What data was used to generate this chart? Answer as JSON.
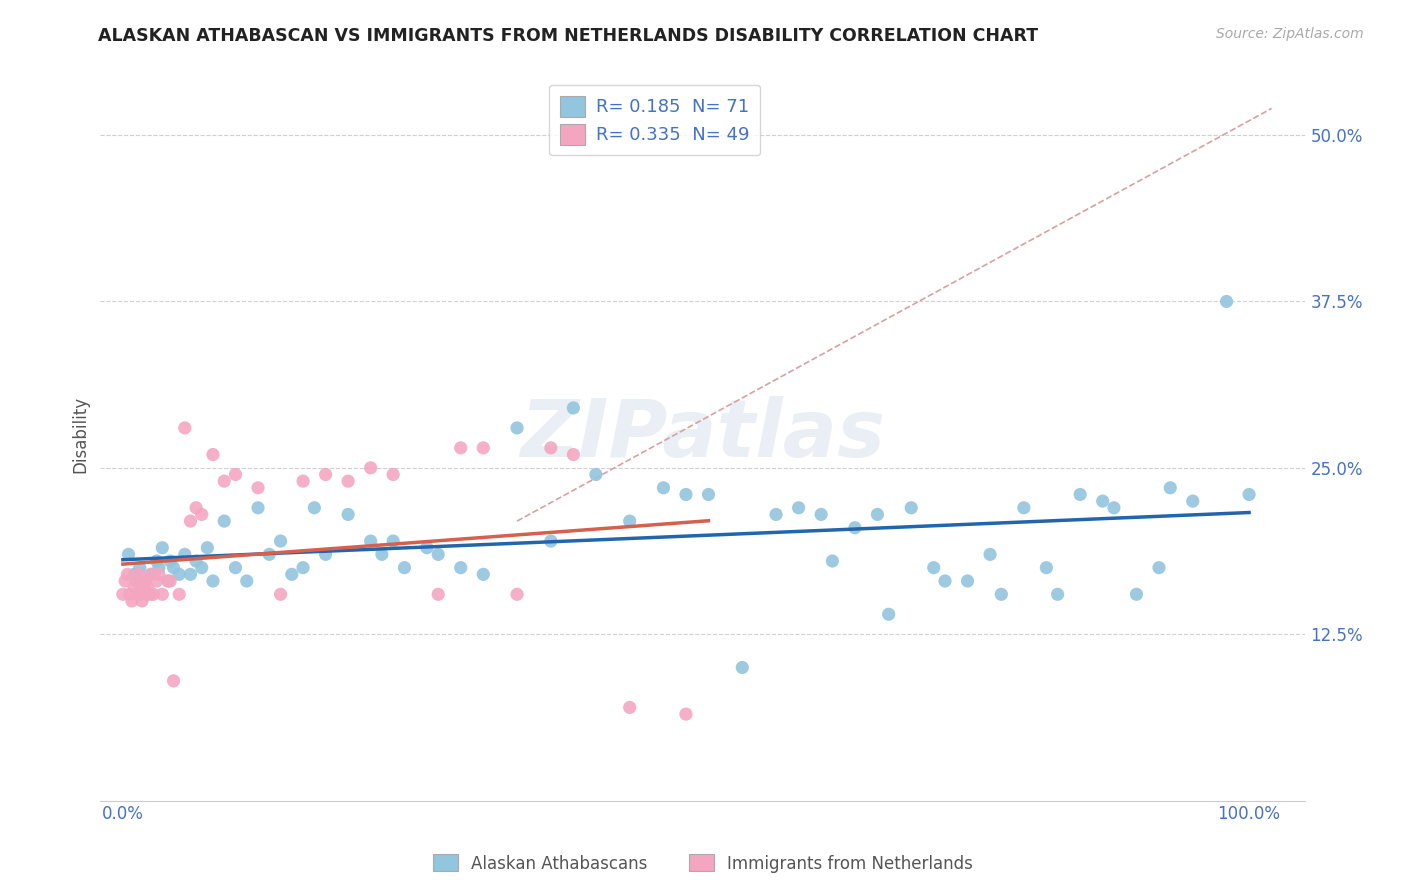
{
  "title": "ALASKAN ATHABASCAN VS IMMIGRANTS FROM NETHERLANDS DISABILITY CORRELATION CHART",
  "source_text": "Source: ZipAtlas.com",
  "ylabel": "Disability",
  "xlim": [
    -0.02,
    1.05
  ],
  "ylim": [
    0.0,
    0.55
  ],
  "x_ticks": [
    0.0,
    1.0
  ],
  "x_tick_labels": [
    "0.0%",
    "100.0%"
  ],
  "y_ticks": [
    0.125,
    0.25,
    0.375,
    0.5
  ],
  "y_tick_labels": [
    "12.5%",
    "25.0%",
    "37.5%",
    "50.0%"
  ],
  "watermark_text": "ZIPatlas",
  "blue_scatter_color": "#92c5de",
  "pink_scatter_color": "#f4a6c0",
  "blue_line_color": "#2166ac",
  "pink_line_color": "#d6604d",
  "dashed_line_color": "#d9a0a0",
  "tick_label_color": "#4472c4",
  "grid_color": "#d0d0d0",
  "R_blue": 0.185,
  "N_blue": 71,
  "R_pink": 0.335,
  "N_pink": 49,
  "blue_points": [
    [
      0.005,
      0.185
    ],
    [
      0.01,
      0.17
    ],
    [
      0.015,
      0.175
    ],
    [
      0.02,
      0.165
    ],
    [
      0.025,
      0.17
    ],
    [
      0.03,
      0.18
    ],
    [
      0.032,
      0.175
    ],
    [
      0.035,
      0.19
    ],
    [
      0.04,
      0.165
    ],
    [
      0.042,
      0.18
    ],
    [
      0.045,
      0.175
    ],
    [
      0.05,
      0.17
    ],
    [
      0.055,
      0.185
    ],
    [
      0.06,
      0.17
    ],
    [
      0.065,
      0.18
    ],
    [
      0.07,
      0.175
    ],
    [
      0.075,
      0.19
    ],
    [
      0.08,
      0.165
    ],
    [
      0.09,
      0.21
    ],
    [
      0.1,
      0.175
    ],
    [
      0.11,
      0.165
    ],
    [
      0.12,
      0.22
    ],
    [
      0.13,
      0.185
    ],
    [
      0.14,
      0.195
    ],
    [
      0.15,
      0.17
    ],
    [
      0.16,
      0.175
    ],
    [
      0.17,
      0.22
    ],
    [
      0.18,
      0.185
    ],
    [
      0.2,
      0.215
    ],
    [
      0.22,
      0.195
    ],
    [
      0.23,
      0.185
    ],
    [
      0.24,
      0.195
    ],
    [
      0.25,
      0.175
    ],
    [
      0.27,
      0.19
    ],
    [
      0.28,
      0.185
    ],
    [
      0.3,
      0.175
    ],
    [
      0.32,
      0.17
    ],
    [
      0.35,
      0.28
    ],
    [
      0.38,
      0.195
    ],
    [
      0.4,
      0.295
    ],
    [
      0.42,
      0.245
    ],
    [
      0.45,
      0.21
    ],
    [
      0.48,
      0.235
    ],
    [
      0.5,
      0.23
    ],
    [
      0.52,
      0.23
    ],
    [
      0.55,
      0.1
    ],
    [
      0.58,
      0.215
    ],
    [
      0.6,
      0.22
    ],
    [
      0.62,
      0.215
    ],
    [
      0.63,
      0.18
    ],
    [
      0.65,
      0.205
    ],
    [
      0.67,
      0.215
    ],
    [
      0.68,
      0.14
    ],
    [
      0.7,
      0.22
    ],
    [
      0.72,
      0.175
    ],
    [
      0.73,
      0.165
    ],
    [
      0.75,
      0.165
    ],
    [
      0.77,
      0.185
    ],
    [
      0.78,
      0.155
    ],
    [
      0.8,
      0.22
    ],
    [
      0.82,
      0.175
    ],
    [
      0.83,
      0.155
    ],
    [
      0.85,
      0.23
    ],
    [
      0.87,
      0.225
    ],
    [
      0.88,
      0.22
    ],
    [
      0.9,
      0.155
    ],
    [
      0.92,
      0.175
    ],
    [
      0.93,
      0.235
    ],
    [
      0.95,
      0.225
    ],
    [
      0.98,
      0.375
    ],
    [
      1.0,
      0.23
    ]
  ],
  "pink_points": [
    [
      0.0,
      0.155
    ],
    [
      0.002,
      0.165
    ],
    [
      0.004,
      0.17
    ],
    [
      0.006,
      0.155
    ],
    [
      0.008,
      0.15
    ],
    [
      0.01,
      0.16
    ],
    [
      0.012,
      0.165
    ],
    [
      0.013,
      0.155
    ],
    [
      0.014,
      0.17
    ],
    [
      0.015,
      0.155
    ],
    [
      0.016,
      0.165
    ],
    [
      0.017,
      0.15
    ],
    [
      0.018,
      0.16
    ],
    [
      0.019,
      0.16
    ],
    [
      0.02,
      0.165
    ],
    [
      0.021,
      0.155
    ],
    [
      0.022,
      0.16
    ],
    [
      0.024,
      0.155
    ],
    [
      0.025,
      0.17
    ],
    [
      0.027,
      0.155
    ],
    [
      0.03,
      0.165
    ],
    [
      0.032,
      0.17
    ],
    [
      0.035,
      0.155
    ],
    [
      0.04,
      0.165
    ],
    [
      0.042,
      0.165
    ],
    [
      0.045,
      0.09
    ],
    [
      0.05,
      0.155
    ],
    [
      0.055,
      0.28
    ],
    [
      0.06,
      0.21
    ],
    [
      0.065,
      0.22
    ],
    [
      0.07,
      0.215
    ],
    [
      0.08,
      0.26
    ],
    [
      0.09,
      0.24
    ],
    [
      0.1,
      0.245
    ],
    [
      0.12,
      0.235
    ],
    [
      0.14,
      0.155
    ],
    [
      0.16,
      0.24
    ],
    [
      0.18,
      0.245
    ],
    [
      0.2,
      0.24
    ],
    [
      0.22,
      0.25
    ],
    [
      0.24,
      0.245
    ],
    [
      0.28,
      0.155
    ],
    [
      0.3,
      0.265
    ],
    [
      0.32,
      0.265
    ],
    [
      0.35,
      0.155
    ],
    [
      0.38,
      0.265
    ],
    [
      0.4,
      0.26
    ],
    [
      0.45,
      0.07
    ],
    [
      0.5,
      0.065
    ]
  ],
  "legend_box_color": "#92c5de",
  "legend_pink_color": "#f4a6c0"
}
